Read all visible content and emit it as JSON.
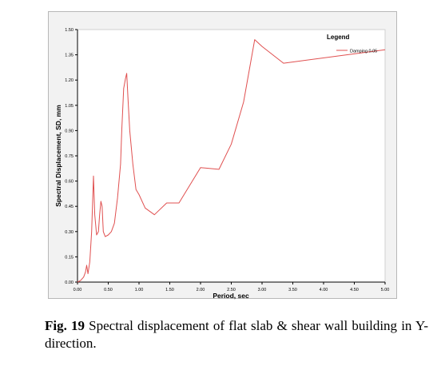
{
  "chart_data": {
    "type": "line",
    "title": "",
    "xlabel": "Period, sec",
    "ylabel": "Spectral Displacement, SD, mm",
    "xlim": [
      0.0,
      5.0
    ],
    "ylim": [
      0.0,
      1.5
    ],
    "x_ticks": [
      "0.00",
      "0.50",
      "1.00",
      "1.50",
      "2.00",
      "2.50",
      "3.00",
      "3.50",
      "4.00",
      "4.50",
      "5.00"
    ],
    "y_ticks": [
      "0.00",
      "0.15",
      "0.30",
      "0.45",
      "0.60",
      "0.75",
      "0.90",
      "1.05",
      "1.20",
      "1.35",
      "1.50"
    ],
    "legend_title": "Legend",
    "legend_position": "top-right",
    "grid": false,
    "series": [
      {
        "name": "Damping 0.05",
        "color": "#e05050",
        "x": [
          0.0,
          0.05,
          0.1,
          0.13,
          0.15,
          0.17,
          0.2,
          0.23,
          0.26,
          0.28,
          0.31,
          0.34,
          0.36,
          0.38,
          0.4,
          0.42,
          0.45,
          0.5,
          0.55,
          0.6,
          0.65,
          0.7,
          0.72,
          0.75,
          0.78,
          0.8,
          0.82,
          0.85,
          0.9,
          0.95,
          1.0,
          1.1,
          1.25,
          1.45,
          1.65,
          2.0,
          2.3,
          2.5,
          2.7,
          2.88,
          3.0,
          3.35,
          5.0
        ],
        "y": [
          0.0,
          0.01,
          0.03,
          0.06,
          0.1,
          0.05,
          0.12,
          0.3,
          0.63,
          0.4,
          0.28,
          0.3,
          0.4,
          0.48,
          0.45,
          0.3,
          0.27,
          0.28,
          0.3,
          0.35,
          0.5,
          0.7,
          0.9,
          1.15,
          1.21,
          1.24,
          1.1,
          0.9,
          0.7,
          0.55,
          0.52,
          0.44,
          0.4,
          0.47,
          0.47,
          0.68,
          0.67,
          0.82,
          1.07,
          1.44,
          1.4,
          1.3,
          1.38
        ]
      }
    ]
  },
  "caption": {
    "label": "Fig. 19",
    "text": " Spectral displacement of flat slab & shear wall building in Y-direction."
  }
}
